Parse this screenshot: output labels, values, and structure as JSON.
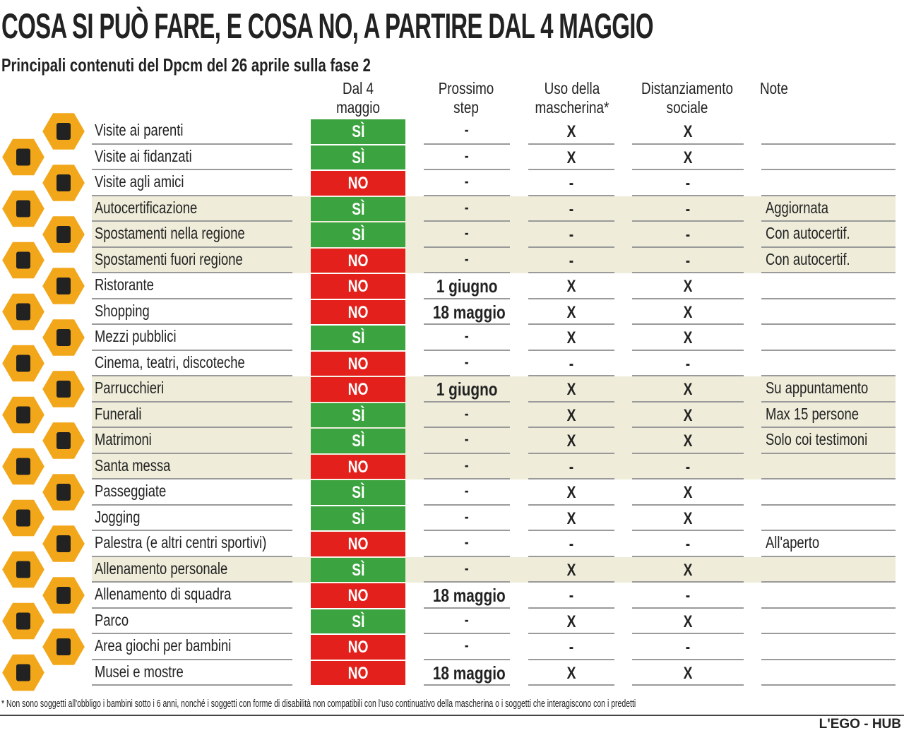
{
  "header": {
    "title": "COSA SI PUÒ FARE, E COSA NO, A PARTIRE DAL 4 MAGGIO",
    "subtitle": "Principali contenuti del Dpcm del 26 aprile sulla fase 2"
  },
  "table": {
    "columns": [
      "Dal 4 maggio",
      "Prossimo step",
      "Uso della mascherina*",
      "Distanziamento sociale",
      "Note"
    ],
    "rows": [
      {
        "label": "Visite ai parenti",
        "status": "SÌ",
        "color": "#3ba33f",
        "next": "-",
        "mask": "X",
        "distance": "X"
      },
      {
        "label": "Visite ai fidanzati",
        "status": "SÌ",
        "color": "#3ba33f",
        "next": "-",
        "mask": "X",
        "distance": "X"
      },
      {
        "label": "Visite agli amici",
        "status": "NO",
        "color": "#e3201b",
        "next": "-",
        "mask": "-",
        "distance": "-"
      },
      {
        "label": "Autocertificazione",
        "status": "SÌ",
        "color": "#3ba33f",
        "next": "-",
        "mask": "-",
        "distance": "-",
        "note": "Aggiornata",
        "shaded": true
      },
      {
        "label": "Spostamenti nella regione",
        "status": "SÌ",
        "color": "#3ba33f",
        "next": "-",
        "mask": "-",
        "distance": "-",
        "note": "Con autocertif.",
        "shaded": true
      },
      {
        "label": "Spostamenti fuori regione",
        "status": "NO",
        "color": "#e3201b",
        "next": "-",
        "mask": "-",
        "distance": "-",
        "note": "Con autocertif.",
        "shaded": true
      },
      {
        "label": "Ristorante",
        "status": "NO",
        "color": "#e3201b",
        "next": "1 giugno",
        "mask": "X",
        "distance": "X"
      },
      {
        "label": "Shopping",
        "status": "NO",
        "color": "#e3201b",
        "next": "18 maggio",
        "mask": "X",
        "distance": "X"
      },
      {
        "label": "Mezzi pubblici",
        "status": "SÌ",
        "color": "#3ba33f",
        "next": "-",
        "mask": "X",
        "distance": "X"
      },
      {
        "label": "Cinema, teatri, discoteche",
        "status": "NO",
        "color": "#e3201b",
        "next": "-",
        "mask": "-",
        "distance": "-"
      },
      {
        "label": "Parrucchieri",
        "status": "NO",
        "color": "#e3201b",
        "next": "1 giugno",
        "mask": "X",
        "distance": "X",
        "note": "Su appuntamento",
        "shaded": true
      },
      {
        "label": "Funerali",
        "status": "SÌ",
        "color": "#3ba33f",
        "next": "-",
        "mask": "X",
        "distance": "X",
        "note": "Max 15 persone",
        "shaded": true
      },
      {
        "label": "Matrimoni",
        "status": "SÌ",
        "color": "#3ba33f",
        "next": "-",
        "mask": "X",
        "distance": "X",
        "note": "Solo coi testimoni",
        "shaded": true
      },
      {
        "label": "Santa messa",
        "status": "NO",
        "color": "#e3201b",
        "next": "-",
        "mask": "-",
        "distance": "-",
        "shaded": true
      },
      {
        "label": "Passeggiate",
        "status": "SÌ",
        "color": "#3ba33f",
        "next": "-",
        "mask": "X",
        "distance": "X"
      },
      {
        "label": "Jogging",
        "status": "SÌ",
        "color": "#3ba33f",
        "next": "-",
        "mask": "X",
        "distance": "X"
      },
      {
        "label": "Palestra (e altri centri sportivi)",
        "status": "NO",
        "color": "#e3201b",
        "next": "-",
        "mask": "-",
        "distance": "-",
        "note": "All'aperto"
      },
      {
        "label": "Allenamento personale",
        "status": "SÌ",
        "color": "#3ba33f",
        "next": "-",
        "mask": "X",
        "distance": "X",
        "shaded": true
      },
      {
        "label": "Allenamento di squadra",
        "status": "NO",
        "color": "#e3201b",
        "next": "18 maggio",
        "mask": "-",
        "distance": "-"
      },
      {
        "label": "Parco",
        "status": "SÌ",
        "color": "#3ba33f",
        "next": "-",
        "mask": "X",
        "distance": "X"
      },
      {
        "label": "Area giochi per bambini",
        "status": "NO",
        "color": "#e3201b",
        "next": "-",
        "mask": "-",
        "distance": "-"
      },
      {
        "label": "Musei e mostre",
        "status": "NO",
        "color": "#e3201b",
        "next": "18 maggio",
        "mask": "X",
        "distance": "X"
      }
    ]
  },
  "footer": {
    "footnote": "* Non sono soggetti all'obbligo i bambini sotto i 6 anni, nonché i soggetti con forme di disabilità non compatibili con l'uso continuativo della mascherina o i soggetti che interagiscono con i predetti",
    "credit": "L'EGO - HUB"
  }
}
